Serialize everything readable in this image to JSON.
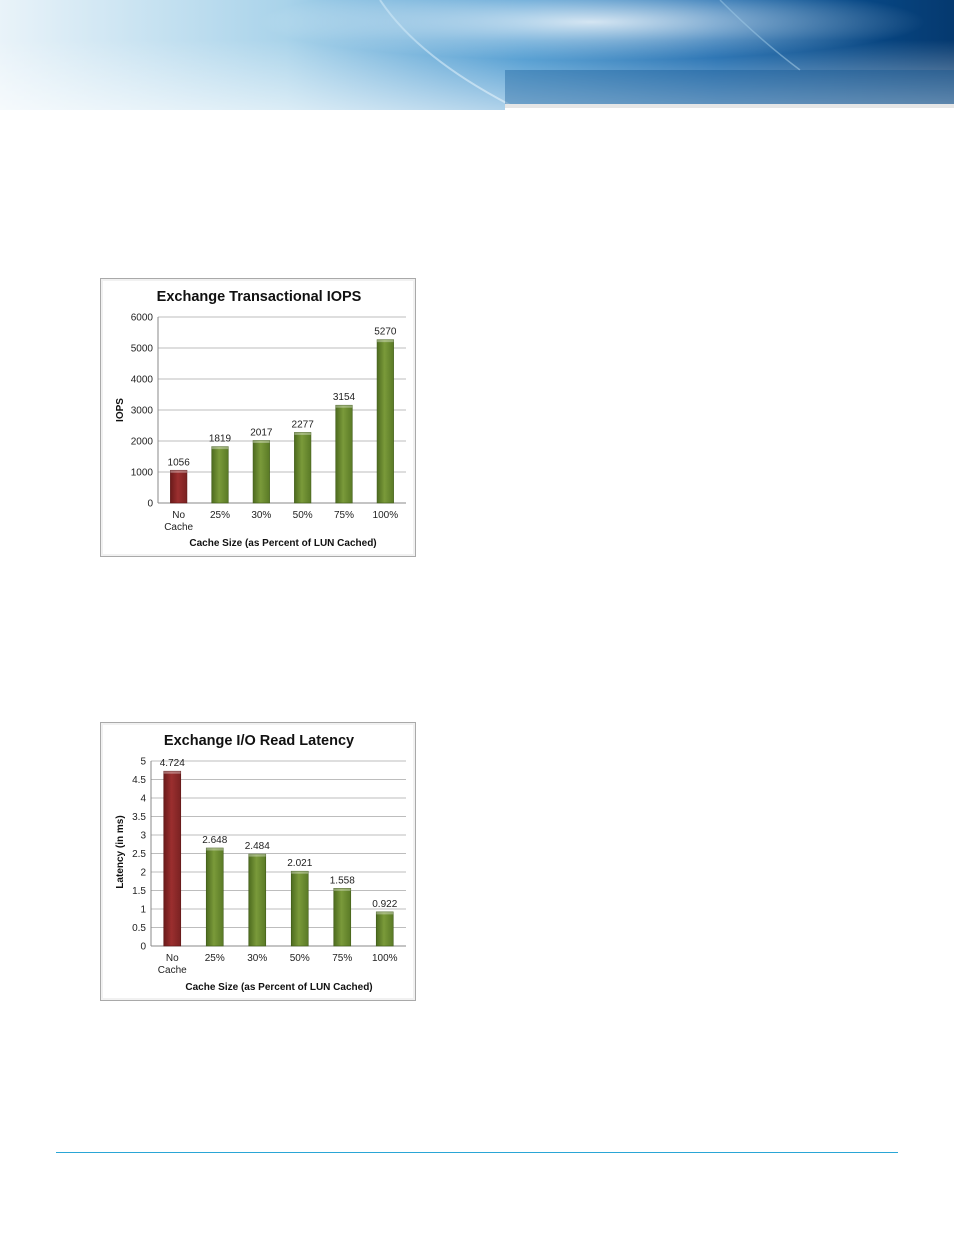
{
  "colors": {
    "accent_rule": "#2aa6d6",
    "bar_green": "#7a9a3a",
    "bar_red": "#9b2f2f",
    "gridline": "#bdbdbd"
  },
  "chart_data": [
    {
      "id": "iops",
      "type": "bar",
      "title": "Exchange Transactional IOPS",
      "xlabel": "Cache Size (as Percent of LUN Cached)",
      "ylabel": "IOPS",
      "categories": [
        "No Cache",
        "25%",
        "30%",
        "50%",
        "75%",
        "100%"
      ],
      "values": [
        1056,
        1819,
        2017,
        2277,
        3154,
        5270
      ],
      "value_labels": [
        "1056",
        "1819",
        "2017",
        "2277",
        "3154",
        "5270"
      ],
      "highlight_colors": [
        "red",
        "green",
        "green",
        "green",
        "green",
        "green"
      ],
      "ylim": [
        0,
        6000
      ],
      "yticks": [
        0,
        1000,
        2000,
        3000,
        4000,
        5000,
        6000
      ],
      "ytick_labels": [
        "0",
        "1000",
        "2000",
        "3000",
        "4000",
        "5000",
        "6000"
      ],
      "grid": true,
      "legend": "none"
    },
    {
      "id": "latency",
      "type": "bar",
      "title": "Exchange I/O Read Latency",
      "xlabel": "Cache Size (as Percent of LUN Cached)",
      "ylabel": "Latency (in ms)",
      "categories": [
        "No Cache",
        "25%",
        "30%",
        "50%",
        "75%",
        "100%"
      ],
      "values": [
        4.724,
        2.648,
        2.484,
        2.021,
        1.558,
        0.922
      ],
      "value_labels": [
        "4.724",
        "2.648",
        "2.484",
        "2.021",
        "1.558",
        "0.922"
      ],
      "highlight_colors": [
        "red",
        "green",
        "green",
        "green",
        "green",
        "green"
      ],
      "ylim": [
        0,
        5
      ],
      "yticks": [
        0,
        0.5,
        1,
        1.5,
        2,
        2.5,
        3,
        3.5,
        4,
        4.5,
        5
      ],
      "ytick_labels": [
        "0",
        "0.5",
        "1",
        "1.5",
        "2",
        "2.5",
        "3",
        "3.5",
        "4",
        "4.5",
        "5"
      ],
      "grid": true,
      "legend": "none"
    }
  ]
}
